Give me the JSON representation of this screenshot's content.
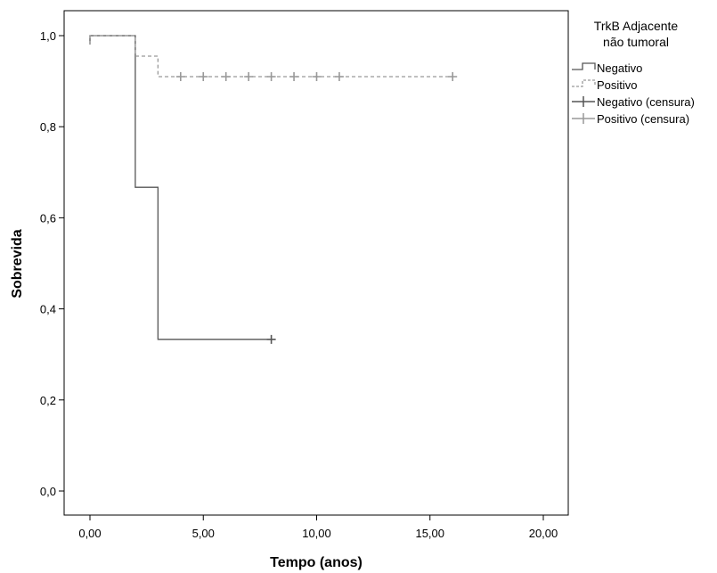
{
  "chart_data": {
    "type": "line",
    "subtype": "kaplan-meier-step",
    "xlabel": "Tempo (anos)",
    "ylabel": "Sobrevida",
    "xlim": [
      0,
      20
    ],
    "ylim": [
      0,
      1
    ],
    "x_ticks": [
      0,
      5,
      10,
      15,
      20
    ],
    "x_tick_labels": [
      "0,00",
      "5,00",
      "10,00",
      "15,00",
      "20,00"
    ],
    "y_ticks": [
      0,
      0.2,
      0.4,
      0.6,
      0.8,
      1.0
    ],
    "y_tick_labels": [
      "0,0",
      "0,2",
      "0,4",
      "0,6",
      "0,8",
      "1,0"
    ],
    "grid": false,
    "legend": {
      "title_lines": [
        "TrkB Adjacente",
        "não tumoral"
      ],
      "placement": "right",
      "entries": [
        "Negativo",
        "Positivo",
        "Negativo (censura)",
        "Positivo (censura)"
      ]
    },
    "series": [
      {
        "name": "Negativo",
        "style": "solid",
        "color": "#555555",
        "steps": [
          [
            0,
            1.0
          ],
          [
            2,
            0.667
          ],
          [
            3,
            0.333
          ],
          [
            8,
            0.333
          ]
        ],
        "censored": [
          [
            8,
            0.333
          ]
        ]
      },
      {
        "name": "Positivo",
        "style": "dashed",
        "color": "#999999",
        "steps": [
          [
            0,
            1.0
          ],
          [
            2,
            0.955
          ],
          [
            3,
            0.91
          ],
          [
            16,
            0.91
          ]
        ],
        "censored": [
          [
            4,
            0.91
          ],
          [
            5,
            0.91
          ],
          [
            6,
            0.91
          ],
          [
            7,
            0.91
          ],
          [
            8,
            0.91
          ],
          [
            9,
            0.91
          ],
          [
            10,
            0.91
          ],
          [
            11,
            0.91
          ],
          [
            16,
            0.91
          ]
        ]
      }
    ]
  }
}
